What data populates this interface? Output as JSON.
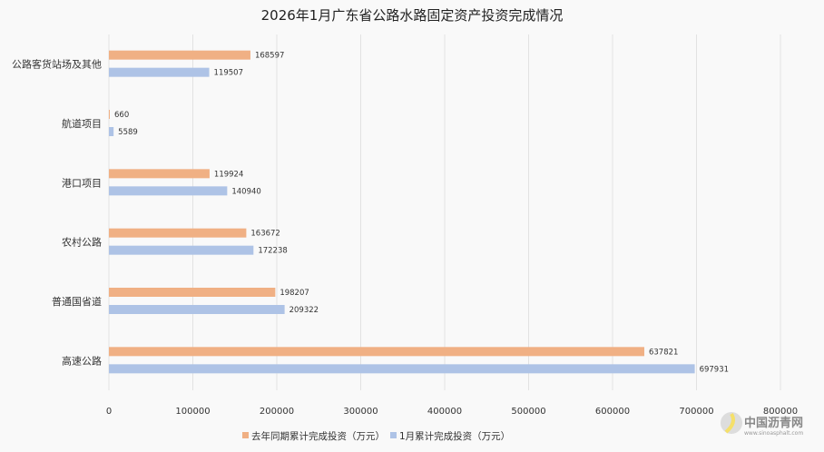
{
  "chart_data": {
    "type": "bar",
    "orientation": "horizontal",
    "title": "2026年1月广东省公路水路固定资产投资完成情况",
    "categories": [
      "公路客货站场及其他",
      "航道项目",
      "港口项目",
      "农村公路",
      "普通国省道",
      "高速公路"
    ],
    "series": [
      {
        "name": "去年同期累计完成投资（万元）",
        "color": "#f0b084",
        "values": [
          168597,
          660,
          119924,
          163672,
          198207,
          637821
        ]
      },
      {
        "name": "1月累计完成投资（万元）",
        "color": "#aec3e6",
        "values": [
          119507,
          5589,
          140940,
          172238,
          209322,
          697931
        ]
      }
    ],
    "xlim": [
      0,
      800000
    ],
    "xticks": [
      "0",
      "100000",
      "200000",
      "300000",
      "400000",
      "500000",
      "600000",
      "700000",
      "800000"
    ],
    "grid": "vertical",
    "legend": "bottom"
  },
  "watermark": {
    "name": "中国沥青网",
    "url_text": "www.sinoasphalt.com"
  }
}
